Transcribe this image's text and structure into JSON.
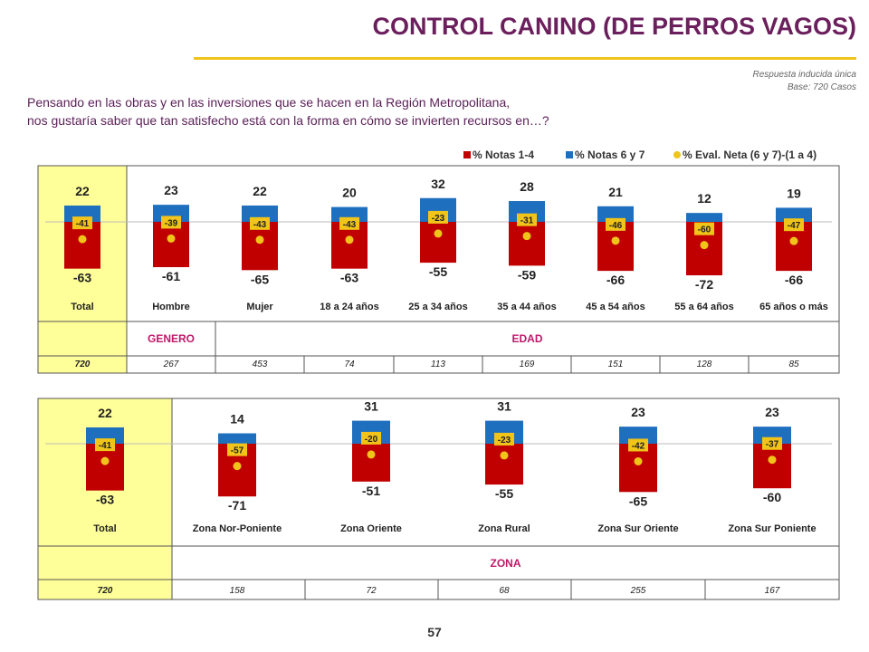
{
  "title": "CONTROL CANINO (DE PERROS VAGOS)",
  "meta": {
    "line1": "Respuesta inducida única",
    "line2": "Base: 720 Casos"
  },
  "question": {
    "line1": "Pensando en las obras y en las inversiones que se hacen en la Región Metropolitana,",
    "line2": "nos gustaría saber que tan satisfecho está con la forma en cómo se invierten recursos en…?"
  },
  "legend": [
    {
      "label": "% Notas 1-4",
      "color": "#c00000"
    },
    {
      "label": "% Notas 6 y 7",
      "color": "#1f6fbf"
    },
    {
      "label": "% Eval. Neta (6 y 7)-(1 a 4)",
      "color": "#f0c419"
    }
  ],
  "page_number": "57",
  "chart_data": [
    {
      "type": "bar",
      "stacking": "diverging",
      "categories": [
        "Total",
        "Hombre",
        "Mujer",
        "18 a 24 años",
        "25 a 34 años",
        "35 a 44 años",
        "45 a 54 años",
        "55 a 64 años",
        "65 años o más"
      ],
      "series": [
        {
          "name": "% Notas 1-4",
          "values": [
            -63,
            -61,
            -65,
            -63,
            -55,
            -59,
            -66,
            -72,
            -66
          ]
        },
        {
          "name": "% Notas 6 y 7",
          "values": [
            22,
            23,
            22,
            20,
            32,
            28,
            21,
            12,
            19
          ]
        },
        {
          "name": "% Eval. Neta (6 y 7)-(1 a 4)",
          "values": [
            -41,
            -39,
            -43,
            -43,
            -23,
            -31,
            -46,
            -60,
            -47
          ]
        }
      ],
      "groups": [
        {
          "label": "GENERO",
          "categories": [
            "Hombre",
            "Mujer"
          ]
        },
        {
          "label": "EDAD",
          "categories": [
            "18 a 24 años",
            "25 a 34 años",
            "35 a 44 años",
            "45 a 54 años",
            "55 a 64 años",
            "65 años o más"
          ]
        }
      ],
      "base": [
        "720",
        "267",
        "453",
        "74",
        "113",
        "169",
        "151",
        "128",
        "85"
      ]
    },
    {
      "type": "bar",
      "stacking": "diverging",
      "categories": [
        "Total",
        "Zona Nor-Poniente",
        "Zona Oriente",
        "Zona Rural",
        "Zona Sur Oriente",
        "Zona Sur Poniente"
      ],
      "series": [
        {
          "name": "% Notas 1-4",
          "values": [
            -63,
            -71,
            -51,
            -55,
            -65,
            -60
          ]
        },
        {
          "name": "% Notas 6 y 7",
          "values": [
            22,
            14,
            31,
            31,
            23,
            23
          ]
        },
        {
          "name": "% Eval. Neta (6 y 7)-(1 a 4)",
          "values": [
            -41,
            -57,
            -20,
            -23,
            -42,
            -37
          ]
        }
      ],
      "groups": [
        {
          "label": "ZONA",
          "categories": [
            "Zona Nor-Poniente",
            "Zona Oriente",
            "Zona Rural",
            "Zona Sur Oriente",
            "Zona Sur Poniente"
          ]
        }
      ],
      "base": [
        "720",
        "158",
        "72",
        "68",
        "255",
        "167"
      ]
    }
  ]
}
